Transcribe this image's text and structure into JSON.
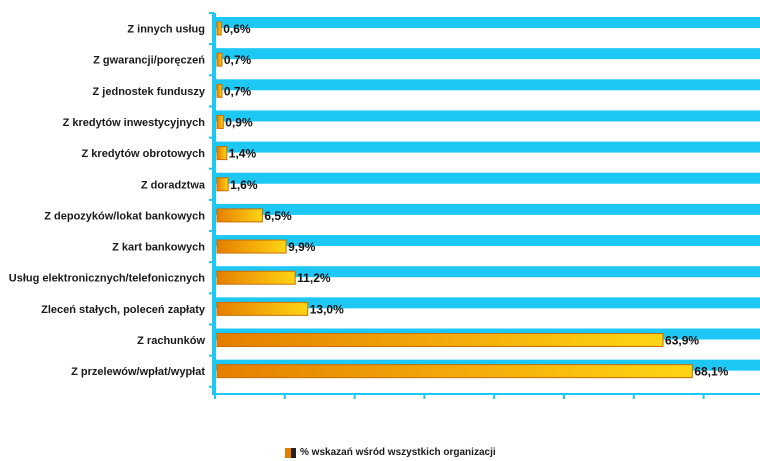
{
  "colors": {
    "band": "#1ec8f5",
    "plot_background": "#ffffff",
    "bar_gradient_start": "#e57e00",
    "bar_gradient_end": "#ffd514",
    "bar_border": "#cc6d00",
    "axis": "#1ec8f5"
  },
  "legend": {
    "label": "% wskazań wśród wszystkich organizacji"
  },
  "chart_data": {
    "type": "bar",
    "orientation": "horizontal",
    "categories": [
      "Z innych usług",
      "Z gwarancji/poręczeń",
      "Z jednostek funduszy",
      "Z kredytów inwestycyjnych",
      "Z kredytów obrotowych",
      "Z doradztwa",
      "Z depozyków/lokat bankowych",
      "Z kart bankowych",
      "Usług elektronicznych/telefonicznych",
      "Zleceń stałych, poleceń zapłaty",
      "Z rachunków",
      "Z przelewów/wpłat/wypłat"
    ],
    "series": [
      {
        "name": "% wskazań wśród wszystkich organizacji",
        "values": [
          0.6,
          0.7,
          0.7,
          0.9,
          1.4,
          1.6,
          6.5,
          9.9,
          11.2,
          13.0,
          63.9,
          68.1
        ],
        "labels": [
          "0,6%",
          "0,7%",
          "0,7%",
          "0,9%",
          "1,4%",
          "1,6%",
          "6,5%",
          "9,9%",
          "11,2%",
          "13,0%",
          "63,9%",
          "68,1%"
        ]
      }
    ],
    "xlim": [
      0,
      75
    ],
    "x_tick_step": 10,
    "legend_position": "bottom-center",
    "grid": false
  }
}
